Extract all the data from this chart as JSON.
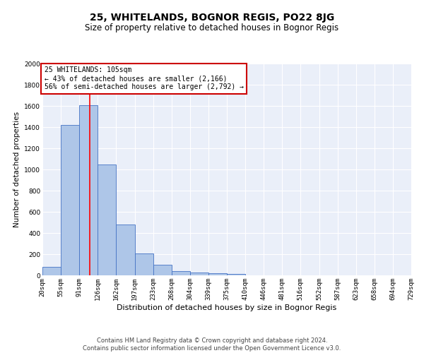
{
  "title": "25, WHITELANDS, BOGNOR REGIS, PO22 8JG",
  "subtitle": "Size of property relative to detached houses in Bognor Regis",
  "xlabel": "Distribution of detached houses by size in Bognor Regis",
  "ylabel": "Number of detached properties",
  "bar_values": [
    80,
    1420,
    1610,
    1050,
    480,
    205,
    100,
    40,
    25,
    20,
    15,
    0,
    0,
    0,
    0,
    0,
    0,
    0,
    0,
    0
  ],
  "bin_labels": [
    "20sqm",
    "55sqm",
    "91sqm",
    "126sqm",
    "162sqm",
    "197sqm",
    "233sqm",
    "268sqm",
    "304sqm",
    "339sqm",
    "375sqm",
    "410sqm",
    "446sqm",
    "481sqm",
    "516sqm",
    "552sqm",
    "587sqm",
    "623sqm",
    "658sqm",
    "694sqm",
    "729sqm"
  ],
  "bar_color": "#aec6e8",
  "bar_edge_color": "#4472c4",
  "bg_color": "#eaeff9",
  "grid_color": "#ffffff",
  "red_line_x": 2.55,
  "annotation_text": "25 WHITELANDS: 105sqm\n← 43% of detached houses are smaller (2,166)\n56% of semi-detached houses are larger (2,792) →",
  "annotation_box_color": "#ffffff",
  "annotation_box_edge": "#cc0000",
  "ylim": [
    0,
    2000
  ],
  "yticks": [
    0,
    200,
    400,
    600,
    800,
    1000,
    1200,
    1400,
    1600,
    1800,
    2000
  ],
  "footnote": "Contains HM Land Registry data © Crown copyright and database right 2024.\nContains public sector information licensed under the Open Government Licence v3.0.",
  "title_fontsize": 10,
  "subtitle_fontsize": 8.5,
  "xlabel_fontsize": 8,
  "ylabel_fontsize": 7.5,
  "tick_fontsize": 6.5,
  "annot_fontsize": 7,
  "footnote_fontsize": 6
}
